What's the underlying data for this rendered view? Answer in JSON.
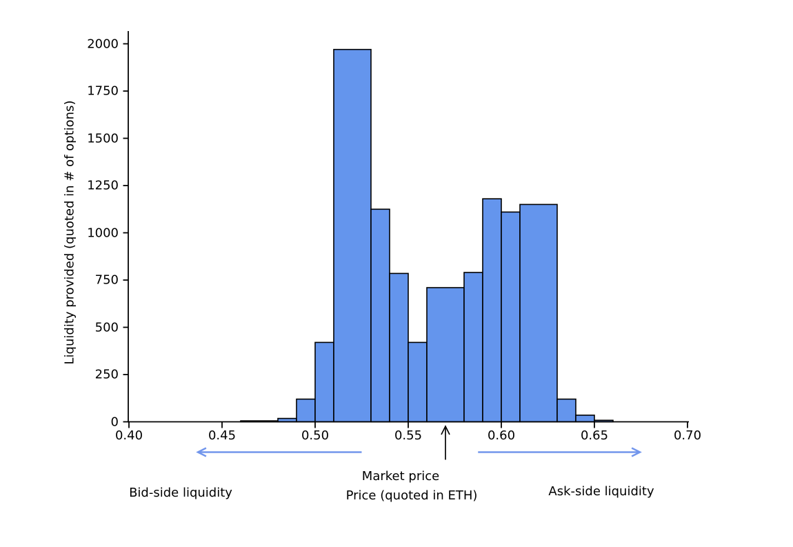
{
  "chart_data": {
    "type": "bar",
    "title": "",
    "xlabel": "Price (quoted in ETH)",
    "ylabel": "Liquidity provided (quoted in # of options)",
    "xlim": [
      0.4,
      0.7
    ],
    "ylim": [
      0,
      2000
    ],
    "x_ticks": [
      "0.40",
      "0.45",
      "0.50",
      "0.55",
      "0.60",
      "0.65",
      "0.70"
    ],
    "y_ticks": [
      "0",
      "250",
      "500",
      "750",
      "1000",
      "1250",
      "1500",
      "1750",
      "2000"
    ],
    "grid": false,
    "legend": null,
    "bar_fill_color": "#6495ED",
    "bar_edge_color": "#000000",
    "axis_color": "#000000",
    "bins": [
      {
        "from": 0.46,
        "to": 0.48,
        "value": 5
      },
      {
        "from": 0.48,
        "to": 0.49,
        "value": 18
      },
      {
        "from": 0.49,
        "to": 0.5,
        "value": 120
      },
      {
        "from": 0.5,
        "to": 0.51,
        "value": 420
      },
      {
        "from": 0.51,
        "to": 0.53,
        "value": 1970
      },
      {
        "from": 0.53,
        "to": 0.54,
        "value": 1125
      },
      {
        "from": 0.54,
        "to": 0.55,
        "value": 785
      },
      {
        "from": 0.55,
        "to": 0.56,
        "value": 420
      },
      {
        "from": 0.56,
        "to": 0.58,
        "value": 710
      },
      {
        "from": 0.58,
        "to": 0.59,
        "value": 790
      },
      {
        "from": 0.59,
        "to": 0.6,
        "value": 1180
      },
      {
        "from": 0.6,
        "to": 0.61,
        "value": 1110
      },
      {
        "from": 0.61,
        "to": 0.63,
        "value": 1150
      },
      {
        "from": 0.63,
        "to": 0.64,
        "value": 120
      },
      {
        "from": 0.64,
        "to": 0.65,
        "value": 35
      },
      {
        "from": 0.65,
        "to": 0.66,
        "value": 8
      }
    ],
    "annotations": {
      "market_price": {
        "label": "Market price",
        "x": 0.57
      },
      "bid_side": {
        "label": "Bid-side liquidity",
        "arrow_start": 0.525,
        "arrow_end": 0.437,
        "direction": "left"
      },
      "ask_side": {
        "label": "Ask-side liquidity",
        "arrow_start": 0.5875,
        "arrow_end": 0.6745,
        "direction": "right"
      },
      "side_arrow_color": "#7296ec",
      "market_arrow_color": "#000000"
    }
  }
}
